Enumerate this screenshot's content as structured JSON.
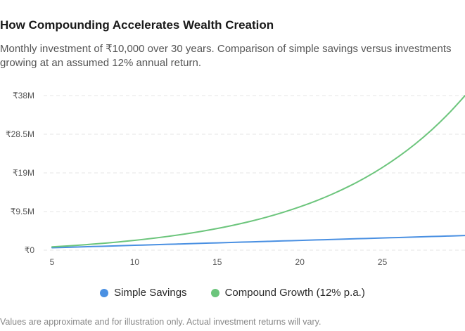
{
  "header": {
    "title": "How Compounding Accelerates Wealth Creation",
    "subtitle": "Monthly investment of ₹10,000 over 30 years. Comparison of simple savings versus investments growing at an assumed 12% annual return."
  },
  "footnote": "Values are approximate and for illustration only. Actual investment returns will vary.",
  "chart_data": {
    "type": "line",
    "x": [
      5,
      6,
      7,
      8,
      9,
      10,
      11,
      12,
      13,
      14,
      15,
      16,
      17,
      18,
      19,
      20,
      21,
      22,
      23,
      24,
      25,
      26,
      27,
      28,
      29,
      30
    ],
    "xlim": [
      5,
      30
    ],
    "xticks": [
      5,
      10,
      15,
      20,
      25
    ],
    "xtick_labels": [
      "5",
      "10",
      "15",
      "20",
      "25"
    ],
    "ylim": [
      0,
      38000000
    ],
    "yticks": [
      0,
      9500000,
      19000000,
      28500000,
      38000000
    ],
    "ytick_labels": [
      "₹0",
      "₹9.5M",
      "₹19M",
      "₹28.5M",
      "₹38M"
    ],
    "grid": true,
    "legend_position": "bottom",
    "series": [
      {
        "name": "Simple Savings",
        "color": "#4a90e2",
        "values": [
          600000,
          720000,
          840000,
          960000,
          1080000,
          1200000,
          1320000,
          1440000,
          1560000,
          1680000,
          1800000,
          1920000,
          2040000,
          2160000,
          2280000,
          2400000,
          2520000,
          2640000,
          2760000,
          2880000,
          3000000,
          3120000,
          3240000,
          3360000,
          3480000,
          3600000
        ]
      },
      {
        "name": "Compound Growth (12% p.a.)",
        "color": "#6cc57c",
        "values": [
          816700,
          1064800,
          1344600,
          1660000,
          2015700,
          2416800,
          2869000,
          3378900,
          3953800,
          4602000,
          5332900,
          6157000,
          7086100,
          8133700,
          9314900,
          10646600,
          12148300,
          13841700,
          15749600,
          17901700,
          20328600,
          23065400,
          26151500,
          29631700,
          33556000,
          37981900
        ]
      }
    ]
  }
}
